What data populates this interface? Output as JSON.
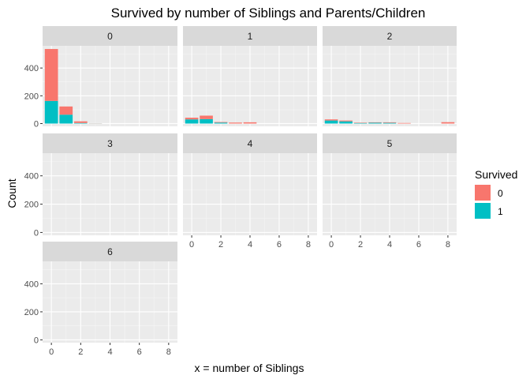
{
  "chart_data": {
    "type": "bar",
    "title": "Survived by number of Siblings and Parents/Children",
    "xlabel": "x = number of Siblings",
    "ylabel": "Count",
    "xlim": [
      -0.6,
      8.6
    ],
    "ylim": [
      -20,
      560
    ],
    "x_ticks": [
      0,
      2,
      4,
      6,
      8
    ],
    "y_ticks": [
      0,
      200,
      400
    ],
    "stacked": true,
    "grid": true,
    "legend": {
      "title": "Survived",
      "position": "right",
      "entries": [
        {
          "label": "0",
          "color": "#F8766D"
        },
        {
          "label": "1",
          "color": "#00BFC4"
        }
      ]
    },
    "facets": [
      {
        "label": "0",
        "bars": [
          {
            "x": 0,
            "survived_0": 374,
            "survived_1": 163
          },
          {
            "x": 1,
            "survived_0": 59,
            "survived_1": 64
          },
          {
            "x": 2,
            "survived_0": 12,
            "survived_1": 4
          },
          {
            "x": 3,
            "survived_0": 1,
            "survived_1": 1
          }
        ]
      },
      {
        "label": "1",
        "bars": [
          {
            "x": 0,
            "survived_0": 12,
            "survived_1": 30
          },
          {
            "x": 1,
            "survived_0": 25,
            "survived_1": 32
          },
          {
            "x": 2,
            "survived_0": 4,
            "survived_1": 7
          },
          {
            "x": 3,
            "survived_0": 7,
            "survived_1": 0
          },
          {
            "x": 4,
            "survived_0": 9,
            "survived_1": 0
          }
        ]
      },
      {
        "label": "2",
        "bars": [
          {
            "x": 0,
            "survived_0": 8,
            "survived_1": 22
          },
          {
            "x": 1,
            "survived_0": 6,
            "survived_1": 16
          },
          {
            "x": 2,
            "survived_0": 3,
            "survived_1": 4
          },
          {
            "x": 3,
            "survived_0": 3,
            "survived_1": 6
          },
          {
            "x": 4,
            "survived_0": 4,
            "survived_1": 5
          },
          {
            "x": 5,
            "survived_0": 4,
            "survived_1": 0
          },
          {
            "x": 8,
            "survived_0": 10,
            "survived_1": 0
          }
        ]
      },
      {
        "label": "3",
        "bars": []
      },
      {
        "label": "4",
        "bars": []
      },
      {
        "label": "5",
        "bars": []
      },
      {
        "label": "6",
        "bars": []
      }
    ]
  }
}
